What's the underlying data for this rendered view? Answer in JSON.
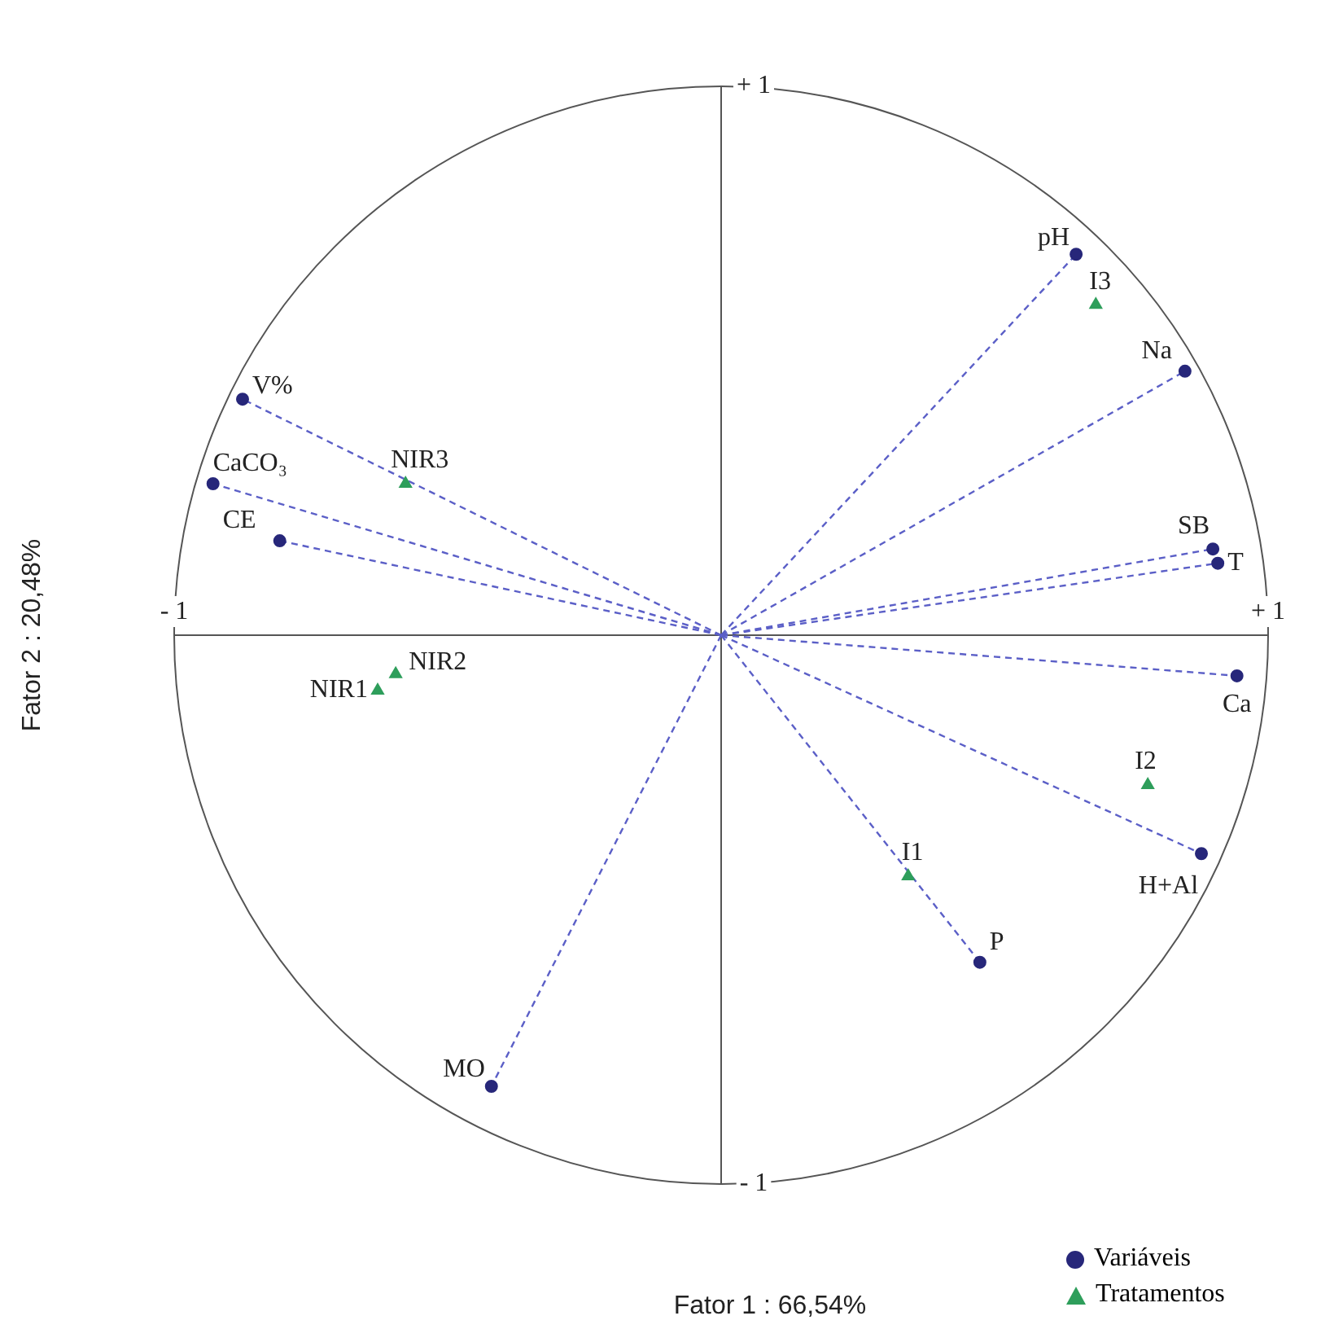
{
  "chart_data": {
    "type": "scatter",
    "xlabel": "Fator 1 : 66,54%",
    "ylabel": "Fator 2 : 20,48%",
    "xlim": [
      -1,
      1
    ],
    "ylim": [
      -1,
      1
    ],
    "xticks": [
      {
        "value": -1,
        "label": "- 1"
      },
      {
        "value": 1,
        "label": "+ 1"
      }
    ],
    "yticks": [
      {
        "value": -1,
        "label": "- 1"
      },
      {
        "value": 1,
        "label": "+ 1"
      }
    ],
    "legend": "bottom right",
    "grid": false,
    "series": [
      {
        "name": "Variáveis",
        "color": "#27277a",
        "marker": "circle",
        "line_style": "dashed",
        "x": [
          0.649,
          0.848,
          0.899,
          0.908,
          0.943,
          0.878,
          0.473,
          -0.42,
          -0.875,
          -0.929,
          -0.807
        ],
        "values": [
          0.694,
          0.481,
          0.157,
          0.131,
          -0.074,
          -0.398,
          -0.596,
          -0.822,
          0.43,
          0.276,
          0.172
        ],
        "value_labels": [
          "pH",
          "Na",
          "SB",
          "T",
          "Ca",
          "H+Al",
          "P",
          "MO",
          "V%",
          "CaCO₃",
          "CE"
        ]
      },
      {
        "name": "Tratamentos",
        "color": "#2e9e5b",
        "marker": "triangle",
        "x": [
          0.685,
          0.78,
          0.342,
          -0.577,
          -0.595,
          -0.628
        ],
        "values": [
          0.602,
          -0.273,
          -0.439,
          0.276,
          -0.071,
          -0.101
        ],
        "value_labels": [
          "I3",
          "I2",
          "I1",
          "NIR3",
          "NIR2",
          "NIR1"
        ]
      }
    ]
  }
}
